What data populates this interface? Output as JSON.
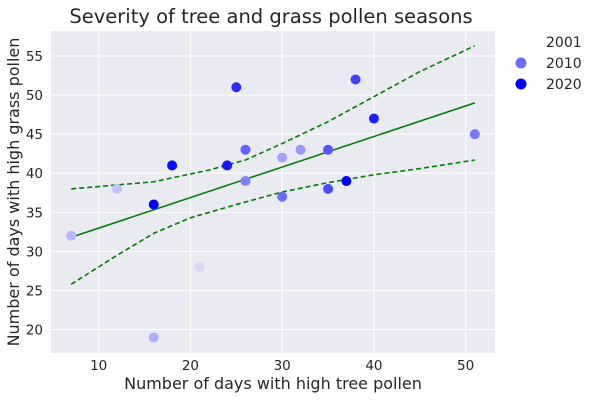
{
  "chart_data": {
    "type": "scatter",
    "title": "Severity of  tree and grass pollen seasons",
    "xlabel": "Number of days with high tree pollen",
    "ylabel": "Number of days with high grass pollen",
    "xlim": [
      4.8,
      53.2
    ],
    "ylim": [
      17.0,
      58.2
    ],
    "xticks": [
      10,
      20,
      30,
      40,
      50
    ],
    "yticks": [
      20,
      25,
      30,
      35,
      40,
      45,
      50,
      55
    ],
    "grid": true,
    "background": "#eaeaf2",
    "legend": {
      "placement": "outside-right",
      "entries": [
        {
          "label": "2001",
          "year": 2001
        },
        {
          "label": "2010",
          "year": 2010
        },
        {
          "label": "2020",
          "year": 2020
        }
      ]
    },
    "color_scale": {
      "from": "#e3e3f6",
      "to": "#0000ff",
      "min_year": 1999,
      "max_year": 2020
    },
    "points": [
      {
        "x": 7,
        "y": 32,
        "year": 2003
      },
      {
        "x": 12,
        "y": 38,
        "year": 2002
      },
      {
        "x": 16,
        "y": 19,
        "year": 2004
      },
      {
        "x": 16,
        "y": 36,
        "year": 2020
      },
      {
        "x": 18,
        "y": 41,
        "year": 2019
      },
      {
        "x": 21,
        "y": 28,
        "year": 2000
      },
      {
        "x": 24,
        "y": 41,
        "year": 2018
      },
      {
        "x": 25,
        "y": 51,
        "year": 2016
      },
      {
        "x": 26,
        "y": 43,
        "year": 2011
      },
      {
        "x": 26,
        "y": 39,
        "year": 2008
      },
      {
        "x": 30,
        "y": 42,
        "year": 2005
      },
      {
        "x": 30,
        "y": 37,
        "year": 2010
      },
      {
        "x": 32,
        "y": 43,
        "year": 2006
      },
      {
        "x": 35,
        "y": 43,
        "year": 2012
      },
      {
        "x": 35,
        "y": 38,
        "year": 2013
      },
      {
        "x": 37,
        "y": 39,
        "year": 2020
      },
      {
        "x": 38,
        "y": 52,
        "year": 2014
      },
      {
        "x": 40,
        "y": 47,
        "year": 2017
      },
      {
        "x": 51,
        "y": 45,
        "year": 2009
      }
    ],
    "regression": {
      "color": "#008000",
      "fit": [
        [
          7,
          31.8
        ],
        [
          51,
          49.0
        ]
      ],
      "upper_band": [
        [
          7,
          38.0
        ],
        [
          16,
          38.9
        ],
        [
          22,
          40.4
        ],
        [
          26,
          41.7
        ],
        [
          30,
          43.8
        ],
        [
          35,
          46.6
        ],
        [
          40,
          49.8
        ],
        [
          45,
          53.0
        ],
        [
          51,
          56.3
        ]
      ],
      "lower_band": [
        [
          7,
          25.8
        ],
        [
          12,
          29.5
        ],
        [
          16,
          32.3
        ],
        [
          20,
          34.3
        ],
        [
          25,
          36.0
        ],
        [
          30,
          37.6
        ],
        [
          35,
          38.8
        ],
        [
          40,
          39.8
        ],
        [
          45,
          40.6
        ],
        [
          51,
          41.7
        ]
      ]
    }
  }
}
